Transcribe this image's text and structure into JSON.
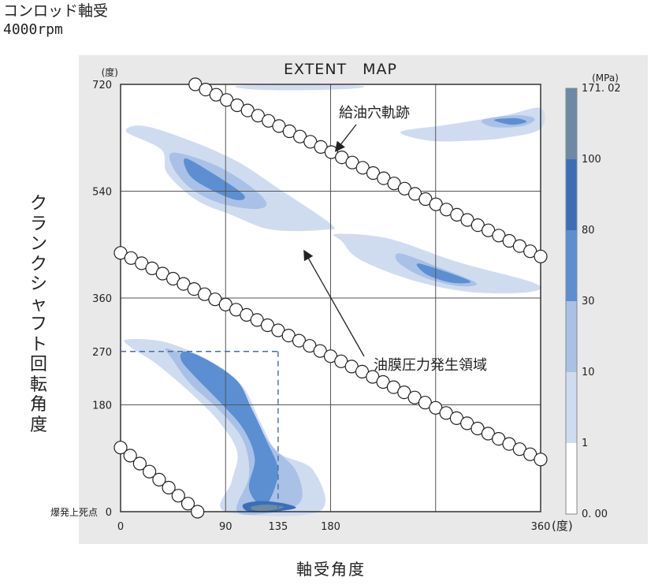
{
  "header": {
    "title": "コンロッド軸受",
    "subtitle": "4000rpm"
  },
  "chart_data": {
    "type": "heatmap",
    "title": "EXTENT MAP",
    "xlabel": "軸受角度",
    "ylabel": "クランクシャフト回転角度",
    "x_unit": "(度)",
    "y_unit": "(度)",
    "x_ticks": [
      0,
      90,
      135,
      180,
      360
    ],
    "y_ticks": [
      0,
      180,
      270,
      360,
      540,
      720
    ],
    "y_tick_labels": [
      "0",
      "180",
      "270",
      "360",
      "540",
      "720"
    ],
    "y_zero_label": "爆発上死点",
    "xlim": [
      0,
      360
    ],
    "ylim": [
      0,
      720
    ],
    "grid": true,
    "colorbar": {
      "unit": "(MPa)",
      "levels": [
        0.0,
        1,
        10,
        30,
        80,
        100,
        171.02
      ],
      "labels": [
        "0. 00",
        "1",
        "10",
        "30",
        "80",
        "100",
        "171. 02"
      ],
      "colors": [
        "#ffffff",
        "#cfdcf0",
        "#a9c1e6",
        "#5b8fd2",
        "#3a6fb8",
        "#6c8aa6",
        "#a9bccb"
      ]
    },
    "annotations": [
      {
        "text": "給油穴軌跡",
        "target": [
          182,
          606
        ]
      },
      {
        "text": "油膜圧力発生領域",
        "target": [
          155,
          441
        ]
      }
    ],
    "reference_point": {
      "x": 135,
      "y": 270
    },
    "oil_hole_trajectory": [
      {
        "x_start": 64,
        "y_start": 720,
        "x_end": 360,
        "y_end": 430
      },
      {
        "x_start": 0,
        "y_start": 436,
        "x_end": 360,
        "y_end": 88
      },
      {
        "x_start": 0,
        "y_start": 108,
        "x_end": 66,
        "y_end": 0
      }
    ],
    "pressure_regions": [
      {
        "level": 1,
        "points": [
          [
            5,
            640
          ],
          [
            20,
            650
          ],
          [
            60,
            625
          ],
          [
            100,
            590
          ],
          [
            135,
            545
          ],
          [
            180,
            485
          ],
          [
            175,
            475
          ],
          [
            130,
            475
          ],
          [
            95,
            500
          ],
          [
            65,
            525
          ],
          [
            40,
            570
          ],
          [
            35,
            610
          ]
        ]
      },
      {
        "level": 10,
        "points": [
          [
            45,
            605
          ],
          [
            80,
            585
          ],
          [
            110,
            550
          ],
          [
            125,
            520
          ],
          [
            115,
            510
          ],
          [
            85,
            520
          ],
          [
            60,
            545
          ],
          [
            45,
            580
          ]
        ]
      },
      {
        "level": 30,
        "points": [
          [
            55,
            595
          ],
          [
            75,
            575
          ],
          [
            105,
            535
          ],
          [
            100,
            525
          ],
          [
            80,
            540
          ],
          [
            60,
            565
          ]
        ]
      },
      {
        "level": 1,
        "points": [
          [
            185,
            468
          ],
          [
            230,
            460
          ],
          [
            290,
            420
          ],
          [
            355,
            385
          ],
          [
            350,
            370
          ],
          [
            300,
            370
          ],
          [
            250,
            390
          ],
          [
            205,
            425
          ],
          [
            190,
            455
          ]
        ]
      },
      {
        "level": 10,
        "points": [
          [
            240,
            435
          ],
          [
            275,
            410
          ],
          [
            305,
            385
          ],
          [
            290,
            380
          ],
          [
            260,
            395
          ],
          [
            238,
            420
          ]
        ]
      },
      {
        "level": 30,
        "points": [
          [
            255,
            418
          ],
          [
            285,
            400
          ],
          [
            300,
            387
          ],
          [
            283,
            386
          ],
          [
            262,
            400
          ]
        ]
      },
      {
        "level": 1,
        "points": [
          [
            5,
            290
          ],
          [
            40,
            285
          ],
          [
            80,
            250
          ],
          [
            105,
            210
          ],
          [
            120,
            150
          ],
          [
            135,
            100
          ],
          [
            165,
            70
          ],
          [
            170,
            0
          ],
          [
            90,
            0
          ],
          [
            95,
            50
          ],
          [
            100,
            100
          ],
          [
            85,
            150
          ],
          [
            60,
            200
          ],
          [
            30,
            250
          ],
          [
            10,
            275
          ]
        ]
      },
      {
        "level": 10,
        "points": [
          [
            40,
            275
          ],
          [
            75,
            245
          ],
          [
            100,
            210
          ],
          [
            115,
            155
          ],
          [
            130,
            110
          ],
          [
            150,
            70
          ],
          [
            155,
            20
          ],
          [
            135,
            0
          ],
          [
            100,
            0
          ],
          [
            110,
            60
          ],
          [
            105,
            120
          ],
          [
            85,
            170
          ],
          [
            60,
            215
          ],
          [
            45,
            255
          ]
        ]
      },
      {
        "level": 30,
        "points": [
          [
            55,
            270
          ],
          [
            75,
            255
          ],
          [
            100,
            220
          ],
          [
            112,
            175
          ],
          [
            125,
            120
          ],
          [
            135,
            70
          ],
          [
            128,
            20
          ],
          [
            120,
            10
          ],
          [
            110,
            40
          ],
          [
            115,
            90
          ],
          [
            105,
            140
          ],
          [
            85,
            185
          ],
          [
            65,
            225
          ],
          [
            52,
            255
          ]
        ]
      },
      {
        "level": 80,
        "points": [
          [
            105,
            12
          ],
          [
            120,
            18
          ],
          [
            140,
            14
          ],
          [
            150,
            6
          ],
          [
            130,
            0
          ],
          [
            110,
            0
          ]
        ]
      },
      {
        "level": 100,
        "points": [
          [
            112,
            8
          ],
          [
            125,
            12
          ],
          [
            140,
            8
          ],
          [
            128,
            2
          ],
          [
            115,
            2
          ]
        ]
      },
      {
        "level": 1,
        "points": [
          [
            105,
            718
          ],
          [
            110,
            712
          ],
          [
            150,
            710
          ],
          [
            200,
            713
          ],
          [
            200,
            718
          ]
        ]
      },
      {
        "level": 1,
        "points": [
          [
            240,
            640
          ],
          [
            280,
            652
          ],
          [
            330,
            668
          ],
          [
            360,
            680
          ],
          [
            360,
            645
          ],
          [
            330,
            630
          ],
          [
            300,
            625
          ],
          [
            265,
            625
          ]
        ]
      },
      {
        "level": 10,
        "points": [
          [
            310,
            660
          ],
          [
            340,
            668
          ],
          [
            355,
            662
          ],
          [
            345,
            650
          ],
          [
            320,
            648
          ]
        ]
      },
      {
        "level": 30,
        "points": [
          [
            320,
            660
          ],
          [
            338,
            663
          ],
          [
            348,
            657
          ],
          [
            335,
            652
          ]
        ]
      }
    ]
  }
}
